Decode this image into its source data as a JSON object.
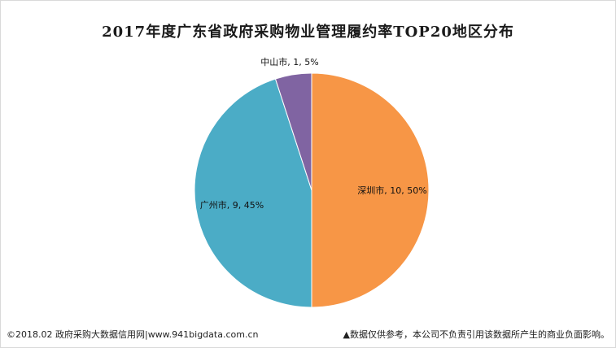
{
  "chart_data": {
    "type": "pie",
    "title": "2017年度广东省政府采购物业管理履约率TOP20地区分布",
    "slices": [
      {
        "label": "深圳市",
        "value": 10,
        "percent": 50,
        "display": "深圳市, 10, 50%",
        "color": "#f79646"
      },
      {
        "label": "广州市",
        "value": 9,
        "percent": 45,
        "display": "广州市, 9, 45%",
        "color": "#4bacc6"
      },
      {
        "label": "中山市",
        "value": 1,
        "percent": 5,
        "display": "中山市, 1, 5%",
        "color": "#8064a2"
      }
    ]
  },
  "footer": {
    "left": "©2018.02 政府采购大数据信用网|www.941bigdata.com.cn",
    "right": "▲数据仅供参考，本公司不负责引用该数据所产生的商业负面影响。"
  }
}
